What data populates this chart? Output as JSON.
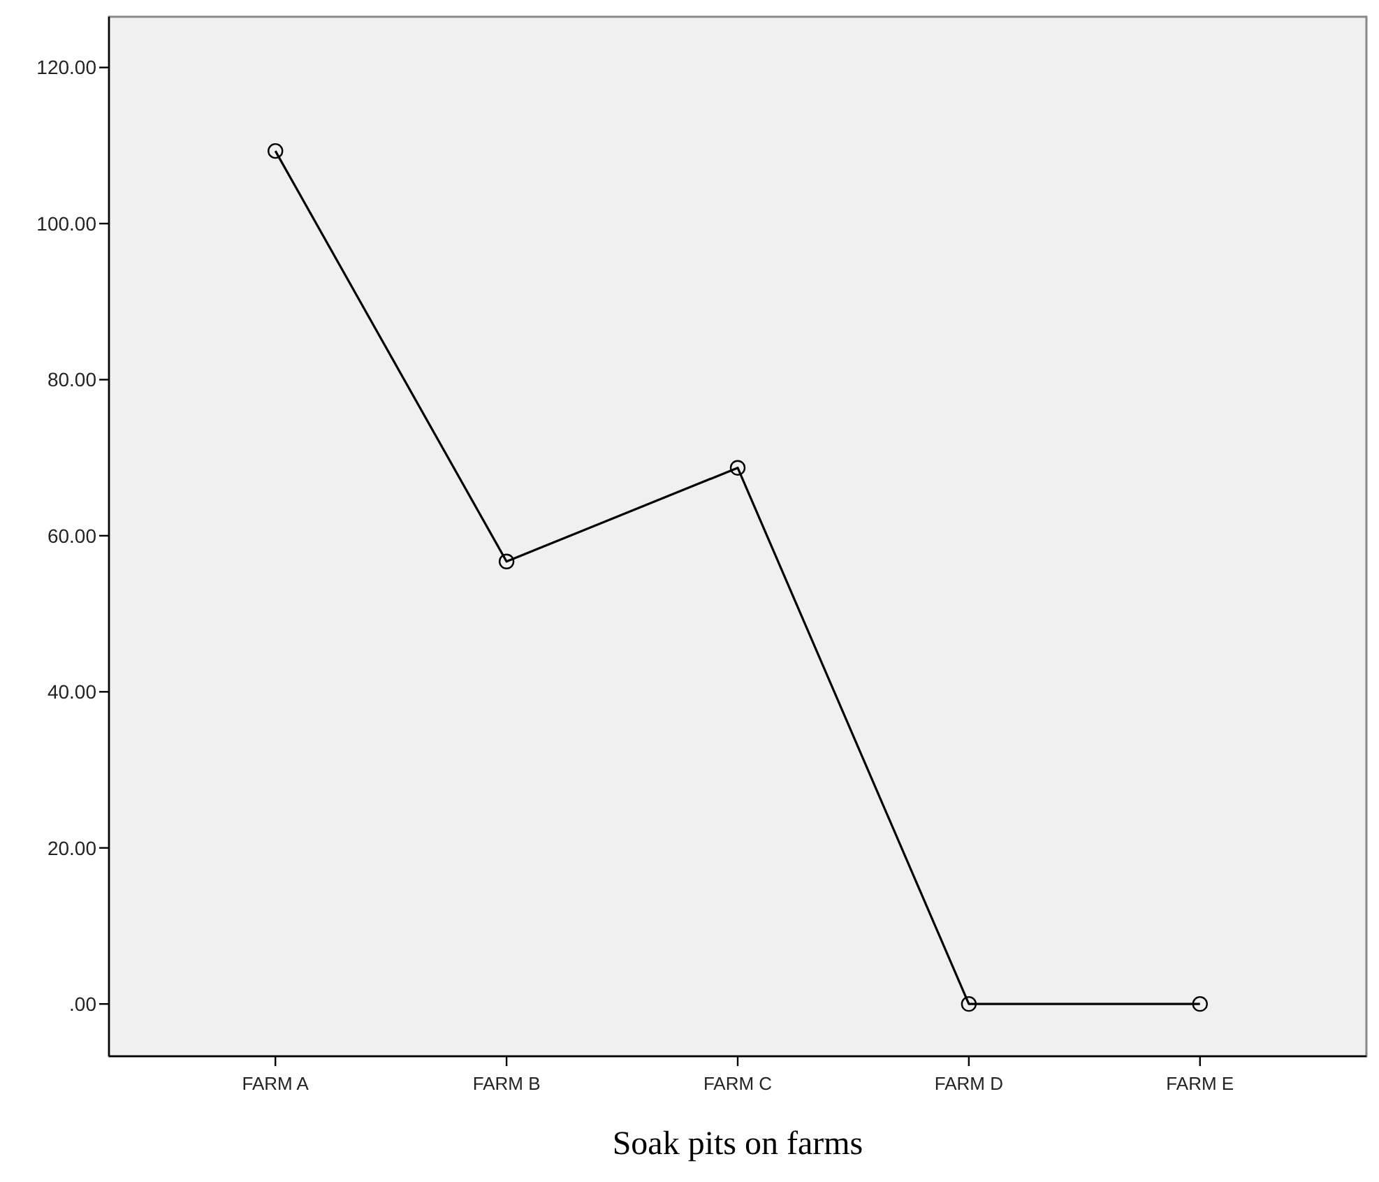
{
  "chart_data": {
    "type": "line",
    "xlabel": "Soak pits on farms",
    "categories": [
      "FARM A",
      "FARM B",
      "FARM C",
      "FARM D",
      "FARM E"
    ],
    "series": [
      {
        "color": "#000000",
        "values": [
          109.3,
          56.7,
          68.7,
          0,
          0
        ]
      }
    ],
    "ylim": [
      -6.7,
      126.5
    ],
    "yticks": [
      {
        "value": 0,
        "label": ".00"
      },
      {
        "value": 20,
        "label": "20.00"
      },
      {
        "value": 40,
        "label": "40.00"
      },
      {
        "value": 60,
        "label": "60.00"
      },
      {
        "value": 80,
        "label": "80.00"
      },
      {
        "value": 100,
        "label": "100.00"
      },
      {
        "value": 120,
        "label": "120.00"
      }
    ],
    "marker": "circle",
    "line_style": "solid",
    "grid": false
  }
}
